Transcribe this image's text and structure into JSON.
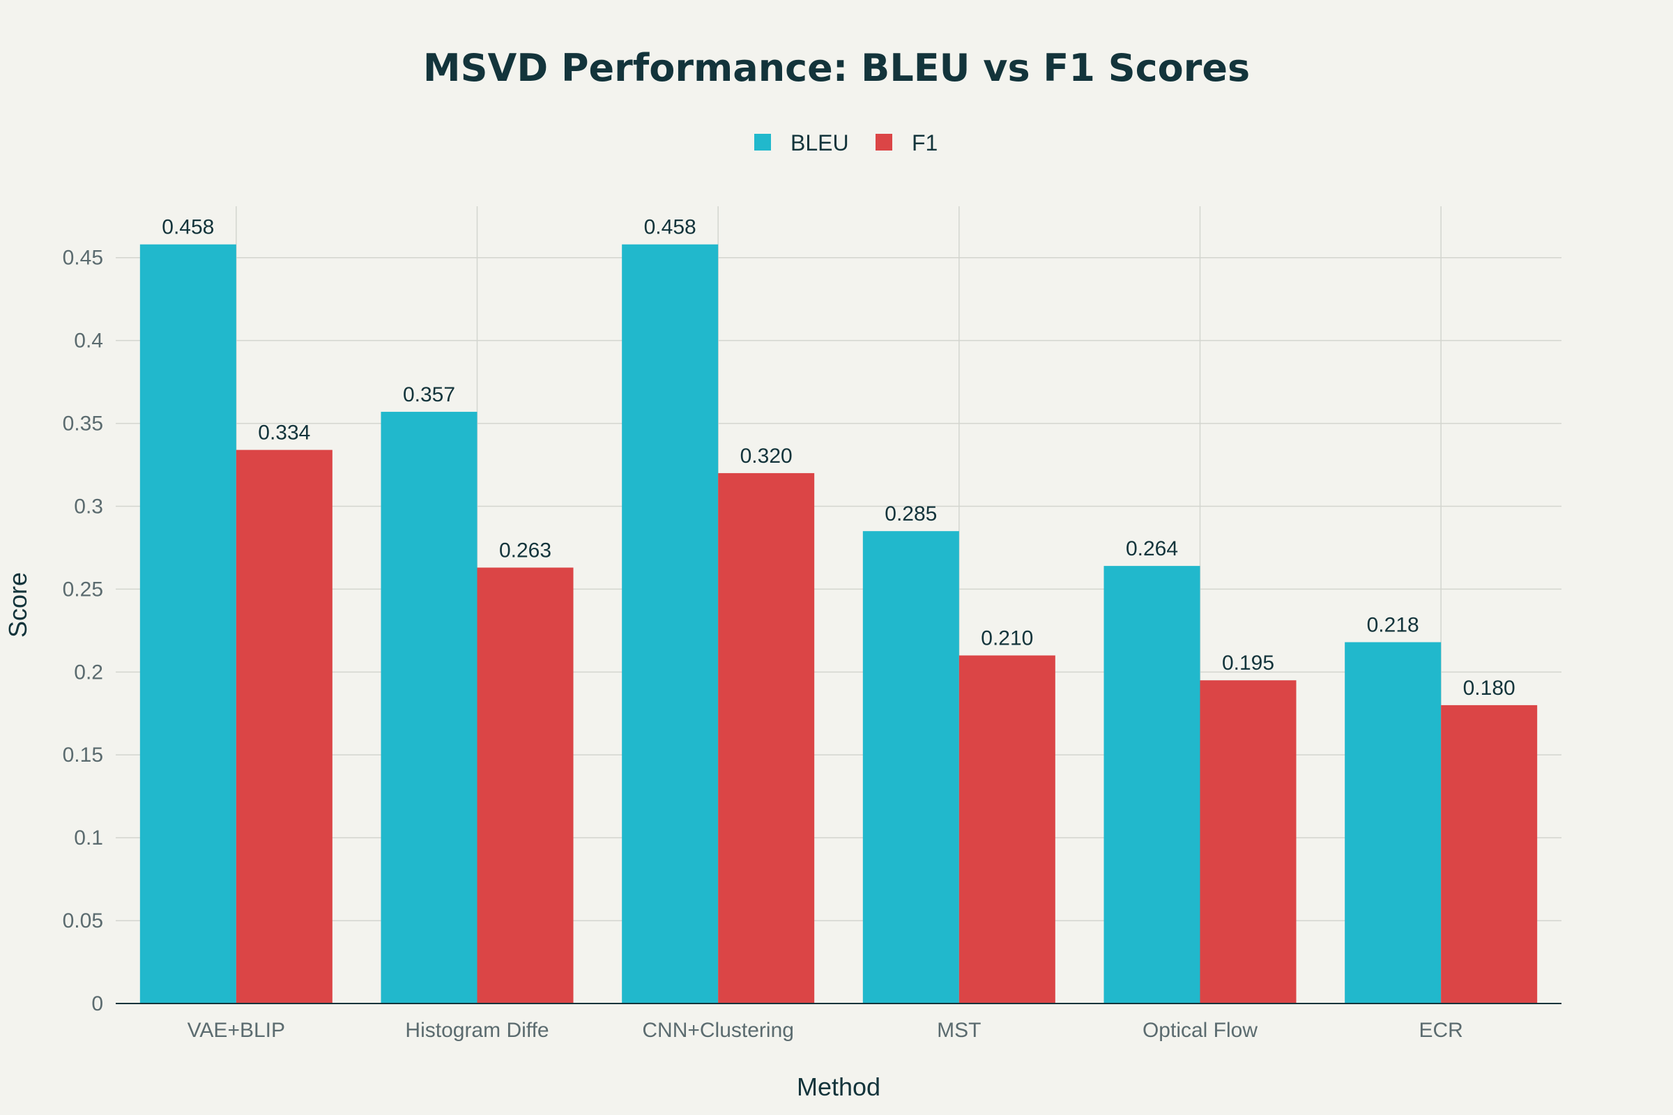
{
  "chart_data": {
    "type": "bar",
    "title": "MSVD Performance: BLEU vs F1 Scores",
    "xlabel": "Method",
    "ylabel": "Score",
    "categories": [
      "VAE+BLIP",
      "Histogram Diffe",
      "CNN+Clustering",
      "MST",
      "Optical Flow",
      "ECR"
    ],
    "series": [
      {
        "name": "BLEU",
        "color": "#21b8cc",
        "values": [
          0.458,
          0.357,
          0.458,
          0.285,
          0.264,
          0.218
        ],
        "labels": [
          "0.458",
          "0.357",
          "0.458",
          "0.285",
          "0.264",
          "0.218"
        ]
      },
      {
        "name": "F1",
        "color": "#db4546",
        "values": [
          0.334,
          0.263,
          0.32,
          0.21,
          0.195,
          0.18
        ],
        "labels": [
          "0.334",
          "0.263",
          "0.320",
          "0.210",
          "0.195",
          "0.180"
        ]
      }
    ],
    "ylim": [
      0,
      0.481
    ],
    "yticks": [
      0,
      0.05,
      0.1,
      0.15,
      0.2,
      0.25,
      0.3,
      0.35,
      0.4,
      0.45
    ],
    "ytick_labels": [
      "0",
      "0.05",
      "0.1",
      "0.15",
      "0.2",
      "0.25",
      "0.3",
      "0.35",
      "0.4",
      "0.45"
    ],
    "grid": true,
    "legend_position": "top-center"
  }
}
